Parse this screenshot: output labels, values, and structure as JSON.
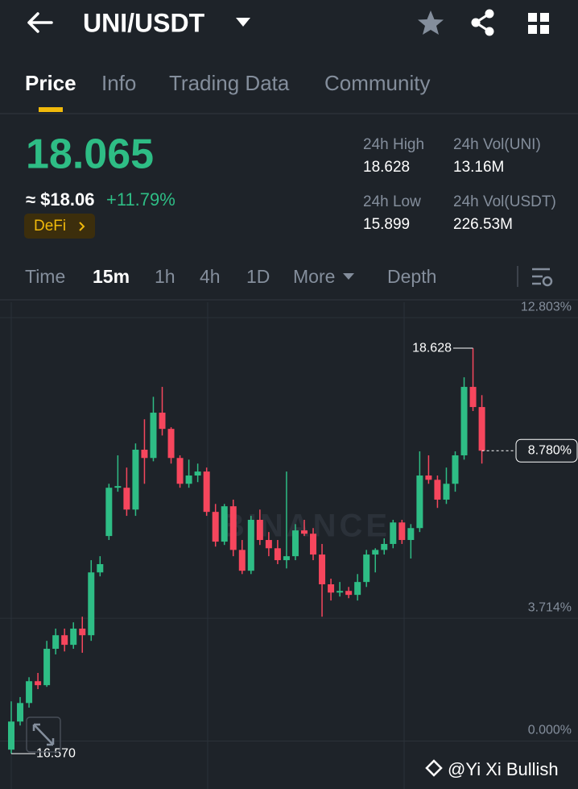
{
  "header": {
    "title": "UNI/USDT"
  },
  "tabs": [
    "Price",
    "Info",
    "Trading Data",
    "Community"
  ],
  "price": {
    "last": "18.065",
    "fiat": "≈ $18.06",
    "change": "+11.79%",
    "tag": "DeFi"
  },
  "stats": [
    {
      "label": "24h High",
      "value": "18.628"
    },
    {
      "label": "24h Vol(UNI)",
      "value": "13.16M"
    },
    {
      "label": "24h Low",
      "value": "15.899"
    },
    {
      "label": "24h Vol(USDT)",
      "value": "226.53M"
    }
  ],
  "intervals": [
    "Time",
    "15m",
    "1h",
    "4h",
    "1D",
    "More",
    "Depth"
  ],
  "chart_data": {
    "type": "candlestick",
    "up_color": "#2ebd85",
    "down_color": "#f6465d",
    "ylim": [
      -1.45,
      13.27
    ],
    "yticks": [
      {
        "value": 12.803,
        "label": "12.803%"
      },
      {
        "value": 3.714,
        "label": "3.714%"
      },
      {
        "value": 0,
        "label": "0.000%"
      }
    ],
    "open": [
      -0.26,
      0.59,
      1.15,
      1.81,
      1.69,
      2.79,
      3.2,
      2.91,
      3.4,
      3.2,
      5.1,
      6.2,
      7.66,
      7.66,
      7.0,
      8.81,
      8.56,
      9.93,
      9.44,
      8.56,
      7.78,
      8.03,
      8.15,
      6.93,
      6.03,
      7.1,
      5.78,
      5.15,
      6.69,
      6.08,
      5.83,
      5.47,
      5.59,
      6.37,
      6.27,
      5.64,
      4.74,
      4.49,
      4.54,
      4.42,
      4.81,
      5.64,
      5.78,
      5.96,
      6.61,
      6.08,
      6.44,
      8.03,
      7.9,
      7.3,
      7.78,
      8.64,
      10.71,
      10.1
    ],
    "high": [
      1.2,
      1.33,
      1.93,
      2.06,
      3.03,
      3.4,
      3.4,
      3.59,
      3.76,
      5.47,
      5.59,
      7.78,
      8.64,
      8.27,
      9.0,
      9.73,
      10.41,
      10.71,
      9.49,
      8.64,
      8.51,
      8.39,
      8.27,
      7.17,
      7.17,
      7.3,
      6.08,
      6.81,
      7.0,
      6.32,
      6.08,
      8.15,
      6.56,
      6.69,
      6.44,
      5.96,
      4.91,
      4.81,
      4.66,
      5.05,
      5.78,
      5.83,
      6.13,
      6.69,
      6.69,
      6.56,
      8.76,
      8.64,
      8.03,
      8.27,
      8.76,
      11.0,
      11.88,
      10.46
    ],
    "low": [
      -0.38,
      0.47,
      1.01,
      1.57,
      1.64,
      2.62,
      2.71,
      2.79,
      2.67,
      3.03,
      4.98,
      6.08,
      7.54,
      6.81,
      6.81,
      7.78,
      8.46,
      9.24,
      8.39,
      7.66,
      7.66,
      7.83,
      6.81,
      5.88,
      5.93,
      5.59,
      5.05,
      5.05,
      5.93,
      5.59,
      5.35,
      5.22,
      5.47,
      6.2,
      5.47,
      3.76,
      4.25,
      4.37,
      4.32,
      4.25,
      4.66,
      5.1,
      5.64,
      5.83,
      5.96,
      5.52,
      6.32,
      7.78,
      7.05,
      7.17,
      7.54,
      8.51,
      9.98,
      8.39
    ],
    "close": [
      0.59,
      1.15,
      1.81,
      1.69,
      2.79,
      3.2,
      2.91,
      3.4,
      3.2,
      5.1,
      5.35,
      7.66,
      7.71,
      7.0,
      8.81,
      8.56,
      9.93,
      9.44,
      8.56,
      7.78,
      8.03,
      8.15,
      6.93,
      6.03,
      7.1,
      5.78,
      5.15,
      6.69,
      6.08,
      5.83,
      5.47,
      5.59,
      6.37,
      6.27,
      5.64,
      4.74,
      4.49,
      4.54,
      4.42,
      4.81,
      5.64,
      5.78,
      5.96,
      6.61,
      6.08,
      6.44,
      8.03,
      7.9,
      7.3,
      7.78,
      8.64,
      10.71,
      10.1,
      8.78
    ],
    "last_price": {
      "value": 8.78,
      "label": "8.780%"
    },
    "high_label": "18.628",
    "low_label": "16.570",
    "watermark": "BINANCE"
  },
  "credit": "@Yi Xi Bullish"
}
